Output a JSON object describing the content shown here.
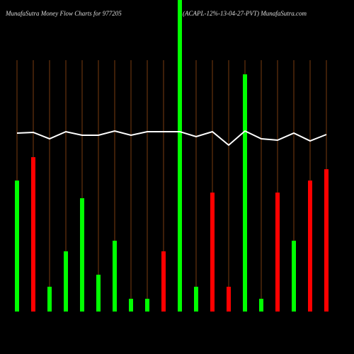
{
  "chart_data": {
    "type": "bar",
    "title": "MunafaSutra  Money Flow  Charts for 977205",
    "subtitle": "(ACAPL-12%-13-04-27-PVT) MunafaSutra.com",
    "categories": [
      null,
      null,
      null,
      null,
      null,
      null,
      null,
      null,
      null,
      null,
      null,
      null,
      null,
      null,
      null,
      null,
      null,
      null,
      null,
      null
    ],
    "values": [
      185,
      218,
      35,
      85,
      160,
      52,
      100,
      18,
      18,
      85,
      440,
      35,
      168,
      35,
      335,
      18,
      168,
      100,
      185,
      201
    ],
    "bar_colors": [
      "#00ff00",
      "#ff0000",
      "#00ff00",
      "#00ff00",
      "#00ff00",
      "#00ff00",
      "#00ff00",
      "#00ff00",
      "#00ff00",
      "#ff0000",
      "#00ff00",
      "#00ff00",
      "#ff0000",
      "#ff0000",
      "#00ff00",
      "#00ff00",
      "#ff0000",
      "#00ff00",
      "#ff0000",
      "#ff0000"
    ],
    "line": {
      "color": "#ffffff",
      "values": [
        252,
        253,
        244,
        254,
        249,
        249,
        255,
        249,
        254,
        254,
        254,
        247,
        254,
        235,
        255,
        244,
        242,
        252,
        241,
        250
      ]
    },
    "ylim": [
      0,
      440
    ]
  }
}
